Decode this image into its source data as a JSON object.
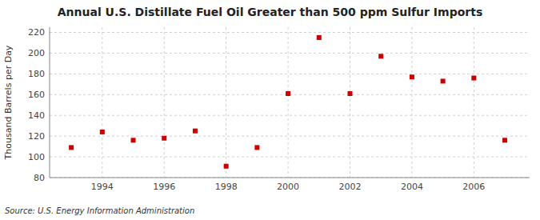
{
  "chart_data": {
    "type": "scatter",
    "title": "Annual U.S. Distillate Fuel Oil Greater than 500 ppm Sulfur Imports",
    "ylabel": "Thousand Barrels per Day",
    "source": "Source: U.S. Energy Information Administration",
    "x": [
      1993,
      1994,
      1995,
      1996,
      1997,
      1998,
      1999,
      2000,
      2001,
      2002,
      2003,
      2004,
      2005,
      2006,
      2007
    ],
    "values": [
      109,
      124,
      116,
      118,
      125,
      91,
      109,
      161,
      215,
      161,
      197,
      177,
      173,
      176,
      116
    ],
    "color": "#cc0000",
    "marker": "square",
    "xlim": [
      1992.3,
      2007.8
    ],
    "xticks": [
      1994,
      1996,
      1998,
      2000,
      2002,
      2004,
      2006
    ],
    "ylim": [
      80,
      225
    ],
    "yticks": [
      80,
      100,
      120,
      140,
      160,
      180,
      200,
      220
    ],
    "grid": true
  }
}
